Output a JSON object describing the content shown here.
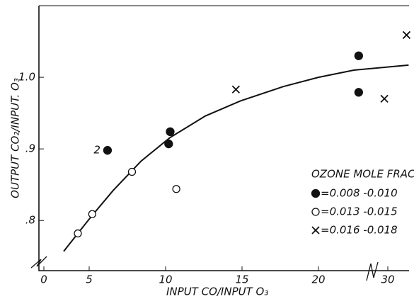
{
  "chart_data": {
    "type": "scatter",
    "xlabel": "INPUT CO/INPUT O₃",
    "ylabel": "OUTPUT CO₂/INPUT. O₃",
    "legend_title": "OZONE MOLE FRACTIONS",
    "annotation": {
      "text": "2",
      "series": 0,
      "point": 0
    },
    "xlim": [
      -0.5,
      33
    ],
    "ylim": [
      0.73,
      1.1
    ],
    "xticks": [
      0,
      5,
      10,
      15,
      20,
      30
    ],
    "yticks": [
      {
        "value": 0.8,
        "label": ".8"
      },
      {
        "value": 0.9,
        "label": ".9"
      },
      {
        "value": 1.0,
        "label": "1.0"
      }
    ],
    "grid": false,
    "series": [
      {
        "name": "=0.008 -0.010",
        "marker": "filled",
        "color": "#111111",
        "x": [
          6.2,
          10.3,
          10.2,
          25.8,
          25.8
        ],
        "values": [
          0.898,
          0.924,
          0.907,
          1.03,
          0.979
        ]
      },
      {
        "name": "=0.013 -0.015",
        "marker": "open",
        "color": "#111111",
        "x": [
          3.75,
          5.2,
          7.8,
          10.7
        ],
        "values": [
          0.782,
          0.809,
          0.868,
          0.844
        ]
      },
      {
        "name": "=0.016 -0.018",
        "marker": "x",
        "color": "#111111",
        "x": [
          14.6,
          29.5,
          32.7
        ],
        "values": [
          0.983,
          0.97,
          1.059
        ]
      }
    ],
    "fit": {
      "color": "#111111",
      "x": [
        2.19,
        3.75,
        5.19,
        6.57,
        8.4,
        10.3,
        12.6,
        14.9,
        17.7,
        20,
        25.1,
        33
      ],
      "values": [
        0.757,
        0.782,
        0.807,
        0.842,
        0.883,
        0.916,
        0.946,
        0.967,
        0.987,
        1.0,
        1.01,
        1.017
      ]
    }
  }
}
